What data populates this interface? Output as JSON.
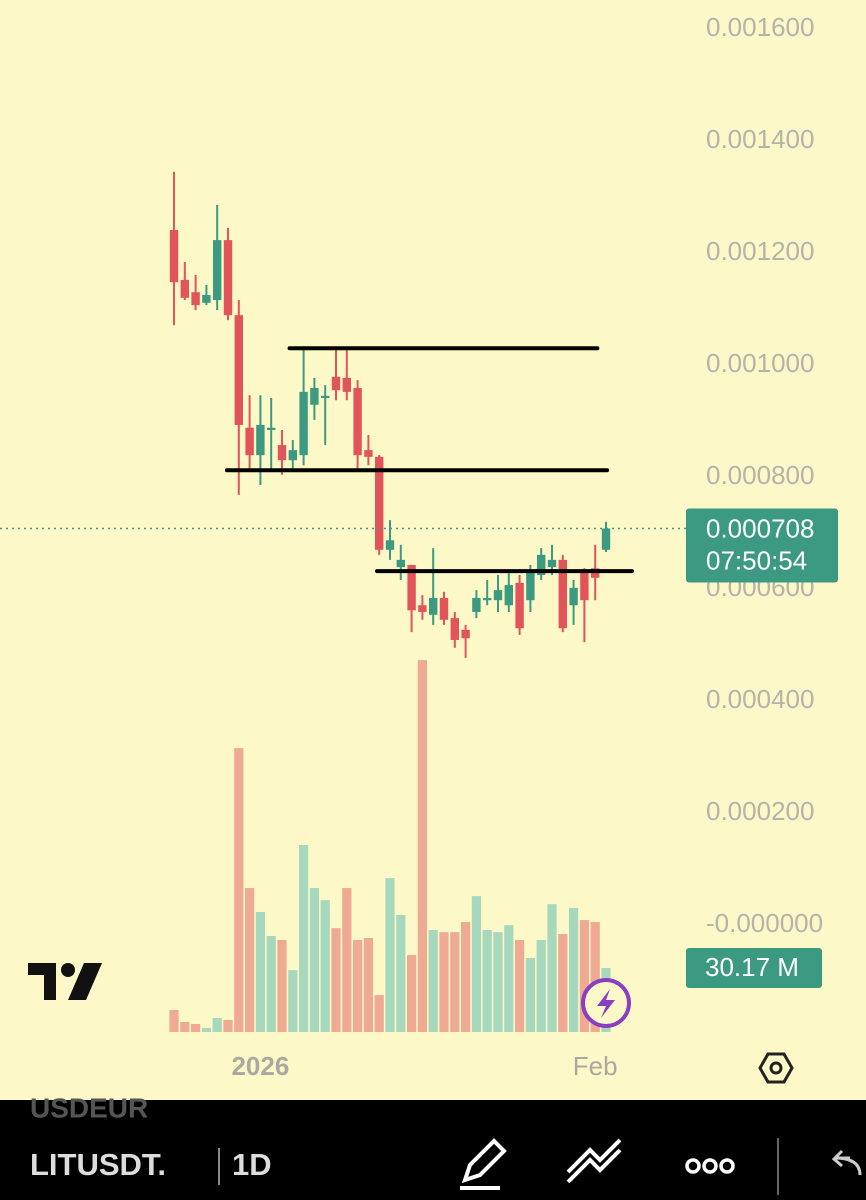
{
  "chart_data": {
    "type": "candlestick",
    "categories": [
      null,
      null,
      null,
      null,
      null,
      null,
      null,
      null,
      "2026",
      null,
      null,
      null,
      null,
      null,
      null,
      null,
      null,
      null,
      null,
      null,
      null,
      null,
      null,
      null,
      null,
      null,
      null,
      null,
      null,
      null,
      null,
      null,
      null,
      null,
      null,
      null,
      null,
      null,
      null,
      "Feb",
      null
    ],
    "open": [
      0.001241,
      0.001152,
      0.00113,
      0.001111,
      0.001116,
      0.001223,
      0.001089,
      0.000888,
      0.000839,
      0.000884,
      0.000857,
      0.00083,
      0.000839,
      0.000929,
      0.000941,
      0.000979,
      0.000977,
      0.000959,
      0.000848,
      0.000836,
      0.00067,
      0.000639,
      0.000643,
      0.000571,
      0.000554,
      0.000584,
      0.000548,
      0.000527,
      0.000559,
      0.00058,
      0.00058,
      0.000571,
      0.000611,
      0.00058,
      0.000625,
      0.000639,
      0.000652,
      0.000571,
      0.00063,
      0.000637,
      0.00067
    ],
    "high": [
      0.001345,
      0.001184,
      0.001161,
      0.001143,
      0.001286,
      0.001245,
      0.001116,
      0.000946,
      0.000946,
      0.000941,
      0.000884,
      0.000866,
      0.00103,
      0.000977,
      0.000964,
      0.001027,
      0.00103,
      0.000973,
      0.000875,
      0.000839,
      0.000723,
      0.000679,
      0.000643,
      0.000589,
      0.000673,
      0.000595,
      0.000559,
      0.000536,
      0.000598,
      0.000616,
      0.000625,
      0.000629,
      0.000625,
      0.000643,
      0.000673,
      0.000679,
      0.000661,
      0.000616,
      0.000637,
      0.000679,
      0.00072
    ],
    "low": [
      0.001071,
      0.001116,
      0.001098,
      0.001107,
      0.001098,
      0.00108,
      0.000768,
      0.000812,
      0.000786,
      0.000812,
      0.000804,
      0.000809,
      0.000821,
      0.000902,
      0.000857,
      0.000937,
      0.000937,
      0.000812,
      0.000821,
      0.000661,
      0.000652,
      0.000616,
      0.000523,
      0.000545,
      0.000536,
      0.000536,
      0.000495,
      0.000477,
      0.000548,
      0.000571,
      0.000559,
      0.000559,
      0.000518,
      0.000559,
      0.000616,
      0.000625,
      0.000523,
      0.000536,
      0.000505,
      0.00058,
      0.000666
    ],
    "close": [
      0.001148,
      0.00112,
      0.001107,
      0.001125,
      0.001223,
      0.001089,
      0.000893,
      0.000839,
      0.000893,
      0.000888,
      0.00083,
      0.000848,
      0.000952,
      0.000959,
      0.000945,
      0.000955,
      0.000952,
      0.000839,
      0.000836,
      0.00067,
      0.000687,
      0.000652,
      0.000562,
      0.000559,
      0.000584,
      0.000545,
      0.000509,
      0.000512,
      0.000584,
      0.000584,
      0.000598,
      0.000607,
      0.00053,
      0.000634,
      0.000661,
      0.000652,
      0.00053,
      0.000602,
      0.00058,
      0.00062,
      0.000708
    ],
    "colors": {
      "up": "#3d9a82",
      "down": "#e0545a"
    },
    "ylim": [
      -0.0003125,
      0.0016518
    ],
    "yticks": [
      {
        "value": 0.0016,
        "label": "0.001600"
      },
      {
        "value": 0.0014,
        "label": "0.001400"
      },
      {
        "value": 0.0012,
        "label": "0.001200"
      },
      {
        "value": 0.001,
        "label": "0.001000"
      },
      {
        "value": 0.0008,
        "label": "0.000800"
      },
      {
        "value": 0.0006,
        "label": "0.000600"
      },
      {
        "value": 0.0004,
        "label": "0.000400"
      },
      {
        "value": 0.0002,
        "label": "0.000200"
      },
      {
        "value": 0,
        "label": "-0.000000"
      }
    ],
    "volume": {
      "values": [
        10.4,
        4.7,
        3.8,
        1.9,
        6.6,
        5.7,
        133.9,
        67.9,
        56.6,
        45.3,
        43.4,
        29.2,
        88.2,
        67.9,
        62.2,
        49.0,
        67.9,
        43.4,
        44.3,
        17.4,
        72.6,
        55.2,
        36.3,
        175.4,
        48.1,
        47.1,
        47.1,
        51.9,
        64.1,
        48.1,
        47.1,
        50.4,
        43.4,
        34.9,
        43.4,
        60.3,
        46.2,
        58.5,
        52.8,
        51.9,
        30.17
      ],
      "colors": {
        "up": "#a6d8bd",
        "down": "#eeaa92"
      },
      "ylim": [
        0,
        300
      ]
    },
    "last_volume_label": "30.17 M",
    "countdown": "07:50:54",
    "levels": [
      {
        "value": 0.00103,
        "from": 10.7,
        "to": 39.2
      },
      {
        "value": 0.000812,
        "from": 4.9,
        "to": 40.1
      },
      {
        "value": 0.000632,
        "from": 18.8,
        "to": 42.4
      }
    ]
  },
  "toolbar": {
    "previous_symbol": "USDEUR",
    "symbol": "LITUSDT.",
    "interval": "1D"
  }
}
